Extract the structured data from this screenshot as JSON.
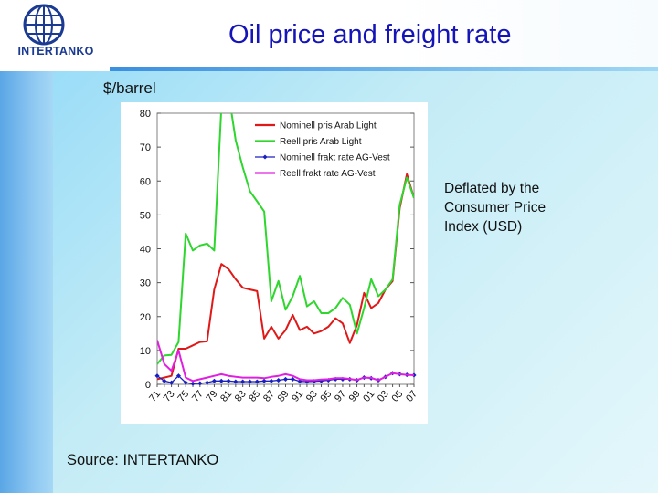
{
  "header": {
    "logo_text": "INTERTANKO",
    "title": "Oil price and freight rate"
  },
  "unit_label": "$/barrel",
  "note": "Deflated by the Consumer Price Index (USD)",
  "source": "Source: INTERTANKO",
  "colors": {
    "series_red": "#e01818",
    "series_green": "#2ed62e",
    "series_blue": "#1a20c0",
    "series_magenta": "#e020e0"
  },
  "chart_data": {
    "type": "line",
    "title": "Oil price and freight rate",
    "ylabel": "$/barrel",
    "xlabel": "",
    "ylim": [
      0,
      80
    ],
    "yticks": [
      0,
      10,
      20,
      30,
      40,
      50,
      60,
      70,
      80
    ],
    "grid": false,
    "legend_position": "top-right",
    "x": [
      1971,
      1972,
      1973,
      1974,
      1975,
      1976,
      1977,
      1978,
      1979,
      1980,
      1981,
      1982,
      1983,
      1984,
      1985,
      1986,
      1987,
      1988,
      1989,
      1990,
      1991,
      1992,
      1993,
      1994,
      1995,
      1996,
      1997,
      1998,
      1999,
      2000,
      2001,
      2002,
      2003,
      2004,
      2005,
      2006,
      2007
    ],
    "xtick_labels": [
      "71",
      "73",
      "75",
      "77",
      "79",
      "81",
      "83",
      "85",
      "87",
      "89",
      "91",
      "93",
      "95",
      "97",
      "99",
      "01",
      "03",
      "05",
      "07"
    ],
    "series": [
      {
        "name": "Nominell pris Arab Light",
        "color_key": "series_red",
        "values": [
          1.5,
          2.0,
          2.5,
          10.5,
          10.5,
          11.5,
          12.5,
          12.7,
          28,
          35.5,
          34,
          31,
          28.5,
          28,
          27.5,
          13.5,
          17,
          13.5,
          16,
          20.5,
          16,
          17,
          15,
          15.7,
          17,
          19.5,
          18,
          12.2,
          17.5,
          27,
          22.5,
          24,
          28,
          30.5,
          52,
          62,
          55
        ]
      },
      {
        "name": "Reell pris Arab Light",
        "color_key": "series_green",
        "values": [
          6,
          8.5,
          8.7,
          12.5,
          44.5,
          39.5,
          41,
          41.5,
          39.5,
          82,
          86,
          72,
          64,
          57,
          54,
          51,
          24.5,
          30.5,
          22,
          26,
          32,
          23,
          24.5,
          21,
          21,
          22.5,
          25.5,
          23.5,
          15,
          22.5,
          31,
          26,
          28,
          31,
          53,
          61,
          55
        ]
      },
      {
        "name": "Nominell frakt rate AG-Vest",
        "color_key": "series_blue",
        "values": [
          2.5,
          1.0,
          0.5,
          2.5,
          0.5,
          0.2,
          0.3,
          0.5,
          1.0,
          1.0,
          1.0,
          0.8,
          0.8,
          0.8,
          0.8,
          1.0,
          1.0,
          1.2,
          1.5,
          1.5,
          0.9,
          0.8,
          0.9,
          1.0,
          1.2,
          1.5,
          1.5,
          1.5,
          1.2,
          2.0,
          1.8,
          1.2,
          2.2,
          3.3,
          3.0,
          2.8,
          2.7
        ]
      },
      {
        "name": "Reell frakt rate AG-Vest",
        "color_key": "series_magenta",
        "values": [
          13,
          6,
          4,
          10,
          2,
          1,
          1.5,
          2,
          2.5,
          3,
          2.5,
          2.2,
          2,
          2,
          2,
          1.8,
          2.2,
          2.5,
          3,
          2.5,
          1.5,
          1.2,
          1.2,
          1.4,
          1.5,
          1.8,
          1.8,
          1.6,
          1.3,
          2,
          1.9,
          1.2,
          2.2,
          3.3,
          3,
          2.8,
          2.7
        ]
      }
    ]
  }
}
